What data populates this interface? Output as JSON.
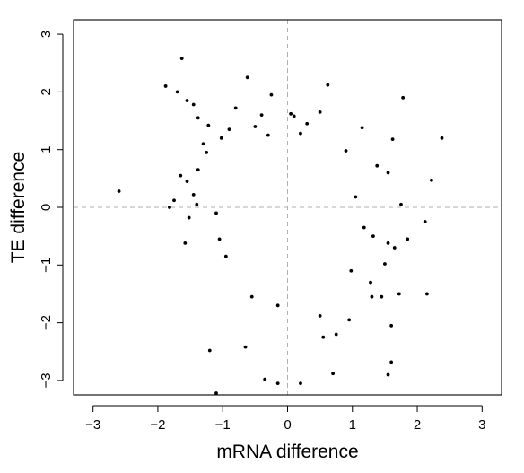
{
  "chart_data": {
    "type": "scatter",
    "title": "",
    "xlabel": "mRNA difference",
    "ylabel": "TE difference",
    "xlim": [
      -3.3,
      3.3
    ],
    "ylim": [
      -3.25,
      3.25
    ],
    "xticks": [
      -3,
      -2,
      -1,
      0,
      1,
      2,
      3
    ],
    "yticks": [
      -3,
      -2,
      -1,
      0,
      1,
      2,
      3
    ],
    "xtick_labels": [
      "−3",
      "−2",
      "−1",
      "0",
      "1",
      "2",
      "3"
    ],
    "ytick_labels": [
      "−3",
      "−2",
      "−1",
      "0",
      "1",
      "2",
      "3"
    ],
    "grid": false,
    "reference_lines": {
      "x": 0,
      "y": 0,
      "style": "dashed",
      "color": "#b0b0b0"
    },
    "point_color": "#000000",
    "series": [
      {
        "values_note": "",
        "points": [
          [
            -2.6,
            0.28
          ],
          [
            -1.63,
            2.58
          ],
          [
            -1.88,
            2.1
          ],
          [
            -1.7,
            2.0
          ],
          [
            -1.55,
            1.85
          ],
          [
            -1.45,
            1.78
          ],
          [
            -1.38,
            1.55
          ],
          [
            -1.22,
            1.42
          ],
          [
            -0.62,
            2.25
          ],
          [
            -0.25,
            1.95
          ],
          [
            0.62,
            2.12
          ],
          [
            1.78,
            1.9
          ],
          [
            2.38,
            1.2
          ],
          [
            1.55,
            0.6
          ],
          [
            1.05,
            0.18
          ],
          [
            1.75,
            0.05
          ],
          [
            2.22,
            0.47
          ],
          [
            2.12,
            -0.25
          ],
          [
            1.85,
            -0.55
          ],
          [
            1.65,
            -0.7
          ],
          [
            1.55,
            -0.62
          ],
          [
            1.5,
            -0.98
          ],
          [
            1.28,
            -1.3
          ],
          [
            1.45,
            -1.55
          ],
          [
            1.72,
            -1.5
          ],
          [
            2.15,
            -1.5
          ],
          [
            1.6,
            -2.05
          ],
          [
            1.6,
            -2.68
          ],
          [
            1.55,
            -2.9
          ],
          [
            0.7,
            -2.88
          ],
          [
            0.2,
            -3.05
          ],
          [
            -0.15,
            -3.05
          ],
          [
            -0.35,
            -2.98
          ],
          [
            -1.1,
            -3.22
          ],
          [
            -0.65,
            -2.42
          ],
          [
            -1.2,
            -2.48
          ],
          [
            -1.82,
            0.0
          ],
          [
            -1.75,
            0.12
          ],
          [
            -1.58,
            -0.62
          ],
          [
            -1.52,
            -0.18
          ],
          [
            -1.45,
            0.22
          ],
          [
            -1.38,
            0.65
          ],
          [
            -1.25,
            0.95
          ],
          [
            -1.4,
            0.05
          ],
          [
            -1.1,
            -0.1
          ],
          [
            1.62,
            1.18
          ],
          [
            1.15,
            1.38
          ],
          [
            0.9,
            0.98
          ],
          [
            0.5,
            1.65
          ],
          [
            0.1,
            1.58
          ],
          [
            -0.4,
            1.6
          ],
          [
            -0.8,
            1.72
          ],
          [
            -0.9,
            1.35
          ],
          [
            -1.02,
            1.2
          ],
          [
            -1.3,
            1.1
          ],
          [
            0.05,
            1.62
          ],
          [
            0.3,
            1.45
          ],
          [
            -0.5,
            1.4
          ],
          [
            0.55,
            -2.25
          ],
          [
            0.75,
            -2.2
          ],
          [
            0.5,
            -1.88
          ],
          [
            0.95,
            -1.95
          ],
          [
            1.3,
            -1.55
          ],
          [
            -0.55,
            -1.55
          ],
          [
            -0.15,
            -1.7
          ],
          [
            1.18,
            -0.35
          ],
          [
            1.32,
            -0.5
          ],
          [
            0.98,
            -1.1
          ],
          [
            1.38,
            0.72
          ],
          [
            -1.55,
            0.45
          ],
          [
            -1.65,
            0.55
          ],
          [
            -0.95,
            -0.85
          ],
          [
            -1.05,
            -0.55
          ],
          [
            -0.3,
            1.25
          ],
          [
            0.2,
            1.28
          ]
        ]
      }
    ]
  }
}
